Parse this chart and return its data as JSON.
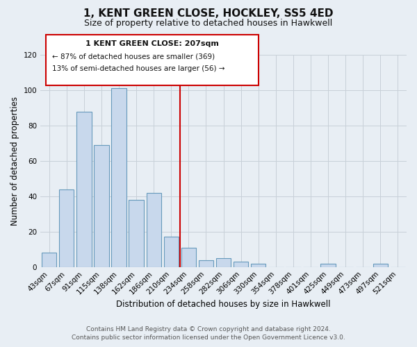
{
  "title": "1, KENT GREEN CLOSE, HOCKLEY, SS5 4ED",
  "subtitle": "Size of property relative to detached houses in Hawkwell",
  "xlabel": "Distribution of detached houses by size in Hawkwell",
  "ylabel": "Number of detached properties",
  "bar_labels": [
    "43sqm",
    "67sqm",
    "91sqm",
    "115sqm",
    "138sqm",
    "162sqm",
    "186sqm",
    "210sqm",
    "234sqm",
    "258sqm",
    "282sqm",
    "306sqm",
    "330sqm",
    "354sqm",
    "378sqm",
    "401sqm",
    "425sqm",
    "449sqm",
    "473sqm",
    "497sqm",
    "521sqm"
  ],
  "bar_values": [
    8,
    44,
    88,
    69,
    101,
    38,
    42,
    17,
    11,
    4,
    5,
    3,
    2,
    0,
    0,
    0,
    2,
    0,
    0,
    2,
    0
  ],
  "bar_color": "#c8d8ec",
  "bar_edge_color": "#6699bb",
  "vline_x": 7.5,
  "vline_color": "#cc0000",
  "annotation_line1": "1 KENT GREEN CLOSE: 207sqm",
  "annotation_line2": "← 87% of detached houses are smaller (369)",
  "annotation_line3": "13% of semi-detached houses are larger (56) →",
  "box_color": "#cc0000",
  "ylim": [
    0,
    120
  ],
  "yticks": [
    0,
    20,
    40,
    60,
    80,
    100,
    120
  ],
  "footer1": "Contains HM Land Registry data © Crown copyright and database right 2024.",
  "footer2": "Contains public sector information licensed under the Open Government Licence v3.0.",
  "bg_color": "#e8eef4",
  "plot_bg_color": "#e8eef4",
  "grid_color": "#c8d0d8"
}
